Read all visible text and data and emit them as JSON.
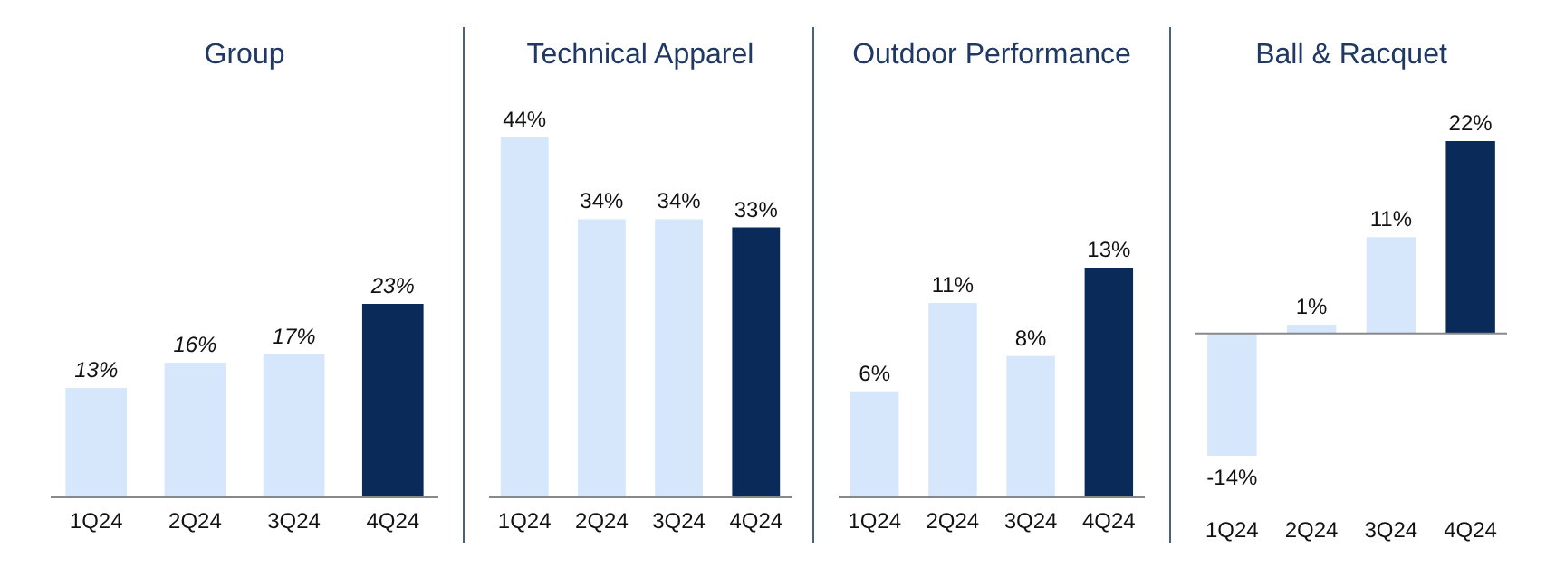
{
  "chart_data": [
    {
      "type": "bar",
      "title": "Group",
      "categories": [
        "1Q24",
        "2Q24",
        "3Q24",
        "4Q24"
      ],
      "values": [
        13,
        16,
        17,
        23
      ],
      "value_labels": [
        "13%",
        "16%",
        "17%",
        "23%"
      ],
      "colors": [
        "#d6e6fb",
        "#d6e6fb",
        "#d6e6fb",
        "#0a2a5a"
      ]
    },
    {
      "type": "bar",
      "title": "Technical Apparel",
      "categories": [
        "1Q24",
        "2Q24",
        "3Q24",
        "4Q24"
      ],
      "values": [
        44,
        34,
        34,
        33
      ],
      "value_labels": [
        "44%",
        "34%",
        "34%",
        "33%"
      ],
      "colors": [
        "#d6e6fb",
        "#d6e6fb",
        "#d6e6fb",
        "#0a2a5a"
      ]
    },
    {
      "type": "bar",
      "title": "Outdoor Performance",
      "categories": [
        "1Q24",
        "2Q24",
        "3Q24",
        "4Q24"
      ],
      "values": [
        6,
        11,
        8,
        13
      ],
      "value_labels": [
        "6%",
        "11%",
        "8%",
        "13%"
      ],
      "colors": [
        "#d6e6fb",
        "#d6e6fb",
        "#d6e6fb",
        "#0a2a5a"
      ]
    },
    {
      "type": "bar",
      "title": "Ball & Racquet",
      "categories": [
        "1Q24",
        "2Q24",
        "3Q24",
        "4Q24"
      ],
      "values": [
        -14,
        1,
        11,
        22
      ],
      "value_labels": [
        "-14%",
        "1%",
        "11%",
        "22%"
      ],
      "colors": [
        "#d6e6fb",
        "#d6e6fb",
        "#d6e6fb",
        "#0a2a5a"
      ]
    }
  ]
}
